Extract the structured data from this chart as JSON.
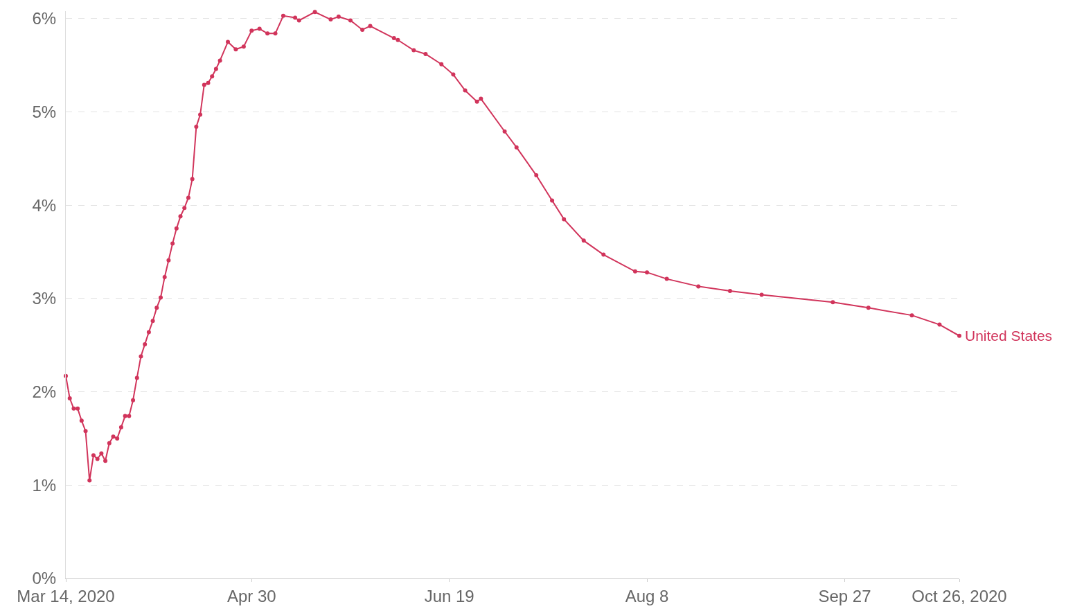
{
  "chart_data": {
    "type": "line",
    "x": [
      "2020-03-14",
      "2020-03-15",
      "2020-03-16",
      "2020-03-17",
      "2020-03-18",
      "2020-03-19",
      "2020-03-20",
      "2020-03-21",
      "2020-03-22",
      "2020-03-23",
      "2020-03-24",
      "2020-03-25",
      "2020-03-26",
      "2020-03-27",
      "2020-03-28",
      "2020-03-29",
      "2020-03-30",
      "2020-03-31",
      "2020-04-01",
      "2020-04-02",
      "2020-04-03",
      "2020-04-04",
      "2020-04-05",
      "2020-04-06",
      "2020-04-07",
      "2020-04-08",
      "2020-04-09",
      "2020-04-10",
      "2020-04-11",
      "2020-04-12",
      "2020-04-13",
      "2020-04-14",
      "2020-04-15",
      "2020-04-16",
      "2020-04-17",
      "2020-04-18",
      "2020-04-19",
      "2020-04-20",
      "2020-04-21",
      "2020-04-22",
      "2020-04-24",
      "2020-04-26",
      "2020-04-28",
      "2020-04-30",
      "2020-05-02",
      "2020-05-04",
      "2020-05-06",
      "2020-05-08",
      "2020-05-11",
      "2020-05-12",
      "2020-05-16",
      "2020-05-20",
      "2020-05-22",
      "2020-05-25",
      "2020-05-28",
      "2020-05-30",
      "2020-06-05",
      "2020-06-06",
      "2020-06-10",
      "2020-06-13",
      "2020-06-17",
      "2020-06-20",
      "2020-06-23",
      "2020-06-26",
      "2020-06-27",
      "2020-07-03",
      "2020-07-06",
      "2020-07-11",
      "2020-07-15",
      "2020-07-18",
      "2020-07-23",
      "2020-07-28",
      "2020-08-05",
      "2020-08-08",
      "2020-08-13",
      "2020-08-21",
      "2020-08-29",
      "2020-09-06",
      "2020-09-24",
      "2020-10-03",
      "2020-10-14",
      "2020-10-21",
      "2020-10-26"
    ],
    "series": [
      {
        "name": "United States",
        "color": "#d1345b",
        "values": [
          2.17,
          1.93,
          1.82,
          1.82,
          1.69,
          1.58,
          1.05,
          1.32,
          1.28,
          1.34,
          1.26,
          1.45,
          1.52,
          1.5,
          1.62,
          1.74,
          1.74,
          1.91,
          2.15,
          2.38,
          2.51,
          2.64,
          2.76,
          2.9,
          3.01,
          3.23,
          3.41,
          3.59,
          3.75,
          3.88,
          3.97,
          4.08,
          4.28,
          4.84,
          4.97,
          5.29,
          5.31,
          5.38,
          5.46,
          5.55,
          5.75,
          5.67,
          5.7,
          5.87,
          5.89,
          5.84,
          5.84,
          6.03,
          6.01,
          5.98,
          6.07,
          5.99,
          6.02,
          5.98,
          5.88,
          5.92,
          5.79,
          5.77,
          5.66,
          5.62,
          5.51,
          5.4,
          5.23,
          5.11,
          5.14,
          4.79,
          4.62,
          4.32,
          4.05,
          3.85,
          3.62,
          3.47,
          3.29,
          3.28,
          3.21,
          3.13,
          3.08,
          3.04,
          2.96,
          2.9,
          2.82,
          2.72,
          2.6
        ]
      }
    ],
    "xlim": [
      "2020-03-14",
      "2020-10-26"
    ],
    "xticks": [
      {
        "value": "2020-03-14",
        "label": "Mar 14, 2020"
      },
      {
        "value": "2020-04-30",
        "label": "Apr 30"
      },
      {
        "value": "2020-06-19",
        "label": "Jun 19"
      },
      {
        "value": "2020-08-08",
        "label": "Aug 8"
      },
      {
        "value": "2020-09-27",
        "label": "Sep 27"
      },
      {
        "value": "2020-10-26",
        "label": "Oct 26, 2020"
      }
    ],
    "ylim": [
      0,
      6.08
    ],
    "yticks": [
      {
        "value": 0,
        "label": "0%"
      },
      {
        "value": 1,
        "label": "1%"
      },
      {
        "value": 2,
        "label": "2%"
      },
      {
        "value": 3,
        "label": "3%"
      },
      {
        "value": 4,
        "label": "4%"
      },
      {
        "value": 5,
        "label": "5%"
      },
      {
        "value": 6,
        "label": "6%"
      }
    ],
    "grid": "y",
    "marker": "circle",
    "line_style": "solid",
    "legend": false
  }
}
